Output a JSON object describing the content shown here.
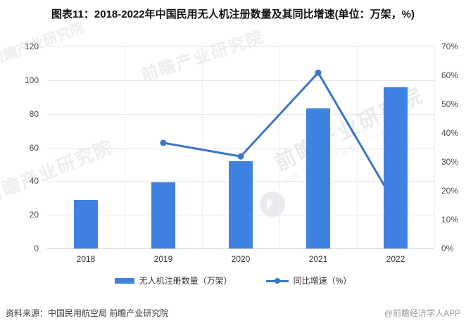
{
  "title": "图表11：2018-2022年中国民用无人机注册数量及其同比增速(单位：万架，%)",
  "legend": [
    {
      "label": "无人机注册数量（万架）",
      "type": "bar"
    },
    {
      "label": "同比增速（%）",
      "type": "line"
    }
  ],
  "footer": {
    "source": "资料来源：中国民用航空局 前瞻产业研究院",
    "credit": "@前瞻经济学人APP"
  },
  "watermark": {
    "text": "前瞻产业研究院",
    "sub": "中国·前瞻咨询（股票·839599）"
  },
  "colors": {
    "bar": "#4082E2",
    "line": "#3D74C6",
    "grid": "#e6e6e6",
    "axis": "#cfcfcf",
    "tick_text": "#4a4a4a"
  },
  "chart_data": {
    "type": "bar+line",
    "title": "图表11：2018-2022年中国民用无人机注册数量及其同比增速(单位：万架，%)",
    "categories": [
      "2018",
      "2019",
      "2020",
      "2021",
      "2022"
    ],
    "series": [
      {
        "name": "无人机注册数量（万架）",
        "type": "bar",
        "axis": "left",
        "values": [
          28.7,
          39.2,
          51.7,
          83.2,
          95.8
        ]
      },
      {
        "name": "同比增速（%）",
        "type": "line",
        "axis": "right",
        "values": [
          null,
          36.6,
          31.9,
          60.9,
          15.1
        ]
      }
    ],
    "left_axis": {
      "min": 0,
      "max": 120,
      "step": 20,
      "ticks": [
        0,
        20,
        40,
        60,
        80,
        100,
        120
      ]
    },
    "right_axis": {
      "min": 0,
      "max": 70,
      "step": 10,
      "unit": "%",
      "ticks": [
        "0%",
        "10%",
        "20%",
        "30%",
        "40%",
        "50%",
        "60%",
        "70%"
      ]
    },
    "grid": true,
    "legend_position": "bottom"
  }
}
